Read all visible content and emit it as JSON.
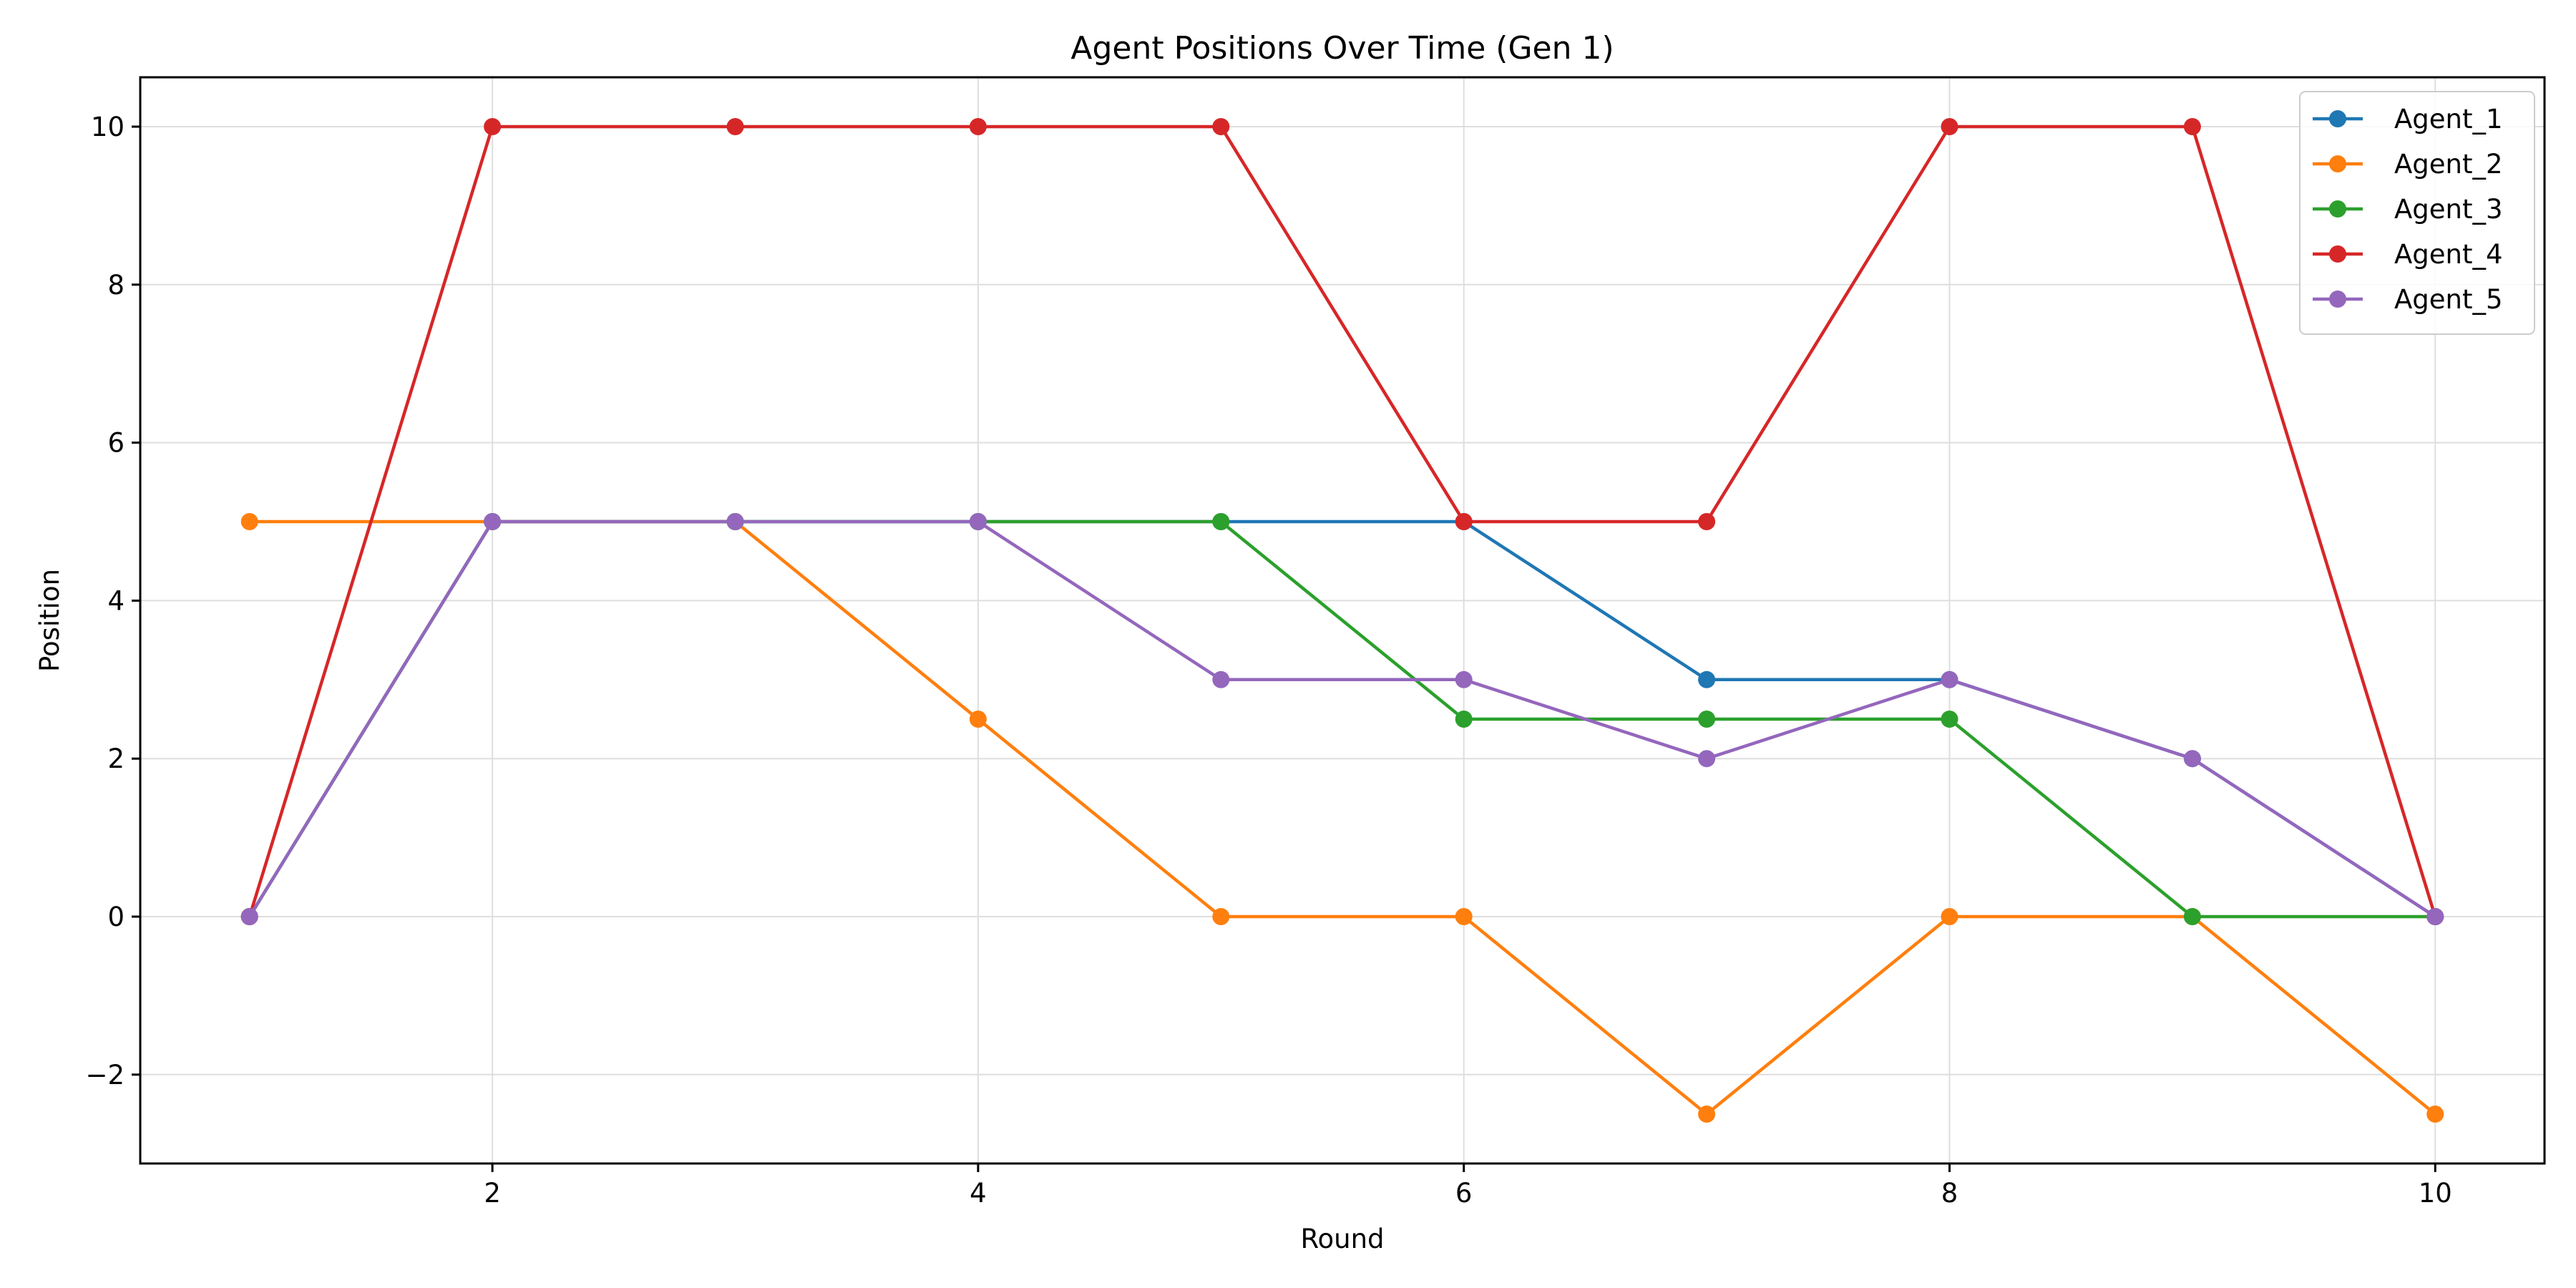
{
  "chart_data": {
    "type": "line",
    "title": "Agent Positions Over Time (Gen 1)",
    "xlabel": "Round",
    "ylabel": "Position",
    "x": [
      1,
      2,
      3,
      4,
      5,
      6,
      7,
      8,
      9,
      10
    ],
    "xlim": [
      0.55,
      10.45
    ],
    "ylim": [
      -3.125,
      10.625
    ],
    "xticks": [
      2,
      4,
      6,
      8,
      10
    ],
    "xtick_labels": [
      "2",
      "4",
      "6",
      "8",
      "10"
    ],
    "yticks": [
      -2,
      0,
      2,
      4,
      6,
      8,
      10
    ],
    "ytick_labels": [
      "−2",
      "0",
      "2",
      "4",
      "6",
      "8",
      "10"
    ],
    "grid": true,
    "legend_position": "top-right",
    "marker": "circle",
    "series": [
      {
        "name": "Agent_1",
        "color": "#1f77b4",
        "values": [
          0,
          5,
          5,
          5,
          5,
          5,
          3,
          3,
          2,
          0
        ]
      },
      {
        "name": "Agent_2",
        "color": "#ff7f0e",
        "values": [
          5,
          5,
          5,
          2.5,
          0,
          0,
          -2.5,
          0,
          0,
          -2.5
        ]
      },
      {
        "name": "Agent_3",
        "color": "#2ca02c",
        "values": [
          0,
          5,
          5,
          5,
          5,
          2.5,
          2.5,
          2.5,
          0,
          0
        ]
      },
      {
        "name": "Agent_4",
        "color": "#d62728",
        "values": [
          0,
          10,
          10,
          10,
          10,
          5,
          5,
          10,
          10,
          0
        ]
      },
      {
        "name": "Agent_5",
        "color": "#9467bd",
        "values": [
          0,
          5,
          5,
          5,
          3,
          3,
          2,
          3,
          2,
          0
        ]
      }
    ]
  }
}
